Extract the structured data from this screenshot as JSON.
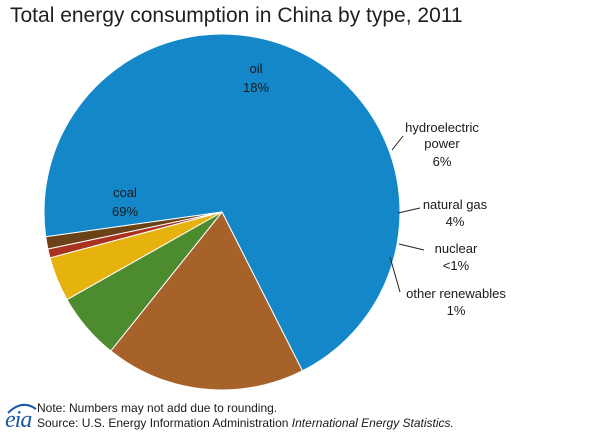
{
  "chart_data": {
    "type": "pie",
    "title": "Total energy consumption in China by type, 2011",
    "slices": [
      {
        "name": "coal",
        "label": "69%",
        "value": 69,
        "color": "#1487c8"
      },
      {
        "name": "oil",
        "label": "18%",
        "value": 18,
        "color": "#a7622a"
      },
      {
        "name": "hydroelectric power",
        "label": "6%",
        "value": 6,
        "color": "#4d8b2f"
      },
      {
        "name": "natural gas",
        "label": "4%",
        "value": 4,
        "color": "#e5b20e"
      },
      {
        "name": "nuclear",
        "label": "<1%",
        "value": 0.8,
        "color": "#a8321f"
      },
      {
        "name": "other renewables",
        "label": "1%",
        "value": 1.1,
        "color": "#6b4117"
      }
    ]
  },
  "footer": {
    "logo": "eia",
    "note": "Note: Numbers may not add due to rounding.",
    "source_prefix": "Source: U.S. Energy Information  Administration ",
    "source_italic": "International Energy Statistics."
  }
}
